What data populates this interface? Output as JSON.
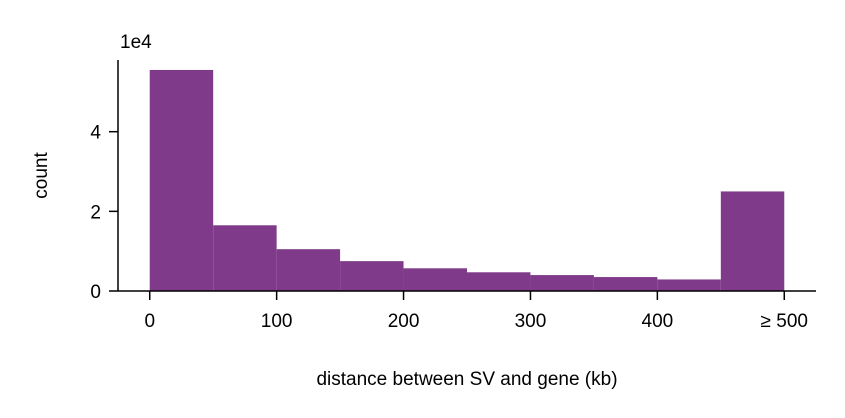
{
  "chart_data": {
    "type": "bar",
    "title": "",
    "xlabel": "distance between SV and gene (kb)",
    "ylabel": "count",
    "y_offset_label": "1e4",
    "bin_edges": [
      0,
      50,
      100,
      150,
      200,
      250,
      300,
      350,
      400,
      450,
      500
    ],
    "values": [
      55500,
      16500,
      10500,
      7500,
      5700,
      4700,
      4000,
      3500,
      2900,
      25000
    ],
    "xlim": [
      -25,
      525
    ],
    "ylim": [
      0,
      58000
    ],
    "x_ticks": [
      {
        "value": 0,
        "label": "0"
      },
      {
        "value": 100,
        "label": "100"
      },
      {
        "value": 200,
        "label": "200"
      },
      {
        "value": 300,
        "label": "300"
      },
      {
        "value": 400,
        "label": "400"
      },
      {
        "value": 500,
        "label": "≥ 500"
      }
    ],
    "y_ticks": [
      {
        "value": 0,
        "label": "0"
      },
      {
        "value": 20000,
        "label": "2"
      },
      {
        "value": 40000,
        "label": "4"
      }
    ],
    "bar_color": "#7f3b8a",
    "grid": false
  }
}
